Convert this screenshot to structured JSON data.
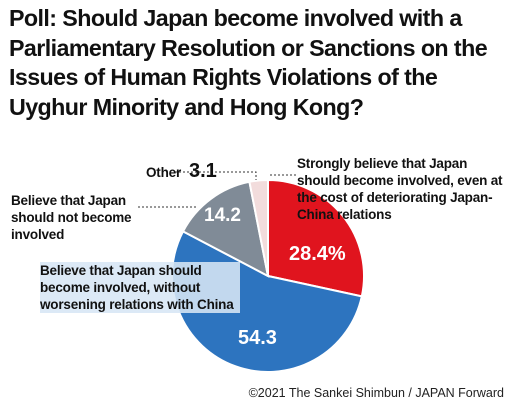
{
  "chart_data": {
    "type": "pie",
    "title": "Poll: Should Japan become involved with a Parliamentary Resolution or Sanctions on the Issues of Human Rights Violations of the Uyghur Minority and Hong Kong?",
    "slices": [
      {
        "label": "Strongly believe that Japan should become involved, even at the cost of deteriorating Japan-China relations",
        "value": 28.4,
        "value_label": "28.4%",
        "color": "#e0141e"
      },
      {
        "label": "Believe that Japan should become involved, without worsening relations with China",
        "value": 54.3,
        "value_label": "54.3",
        "color": "#2d74bf"
      },
      {
        "label": "Believe that Japan should not become involved",
        "value": 14.2,
        "value_label": "14.2",
        "color": "#808b97"
      },
      {
        "label": "Other",
        "value": 3.1,
        "value_label": "3.1",
        "color": "#f2dcdc"
      }
    ]
  },
  "credit": "©2021 The Sankei Shimbun / JAPAN Forward"
}
